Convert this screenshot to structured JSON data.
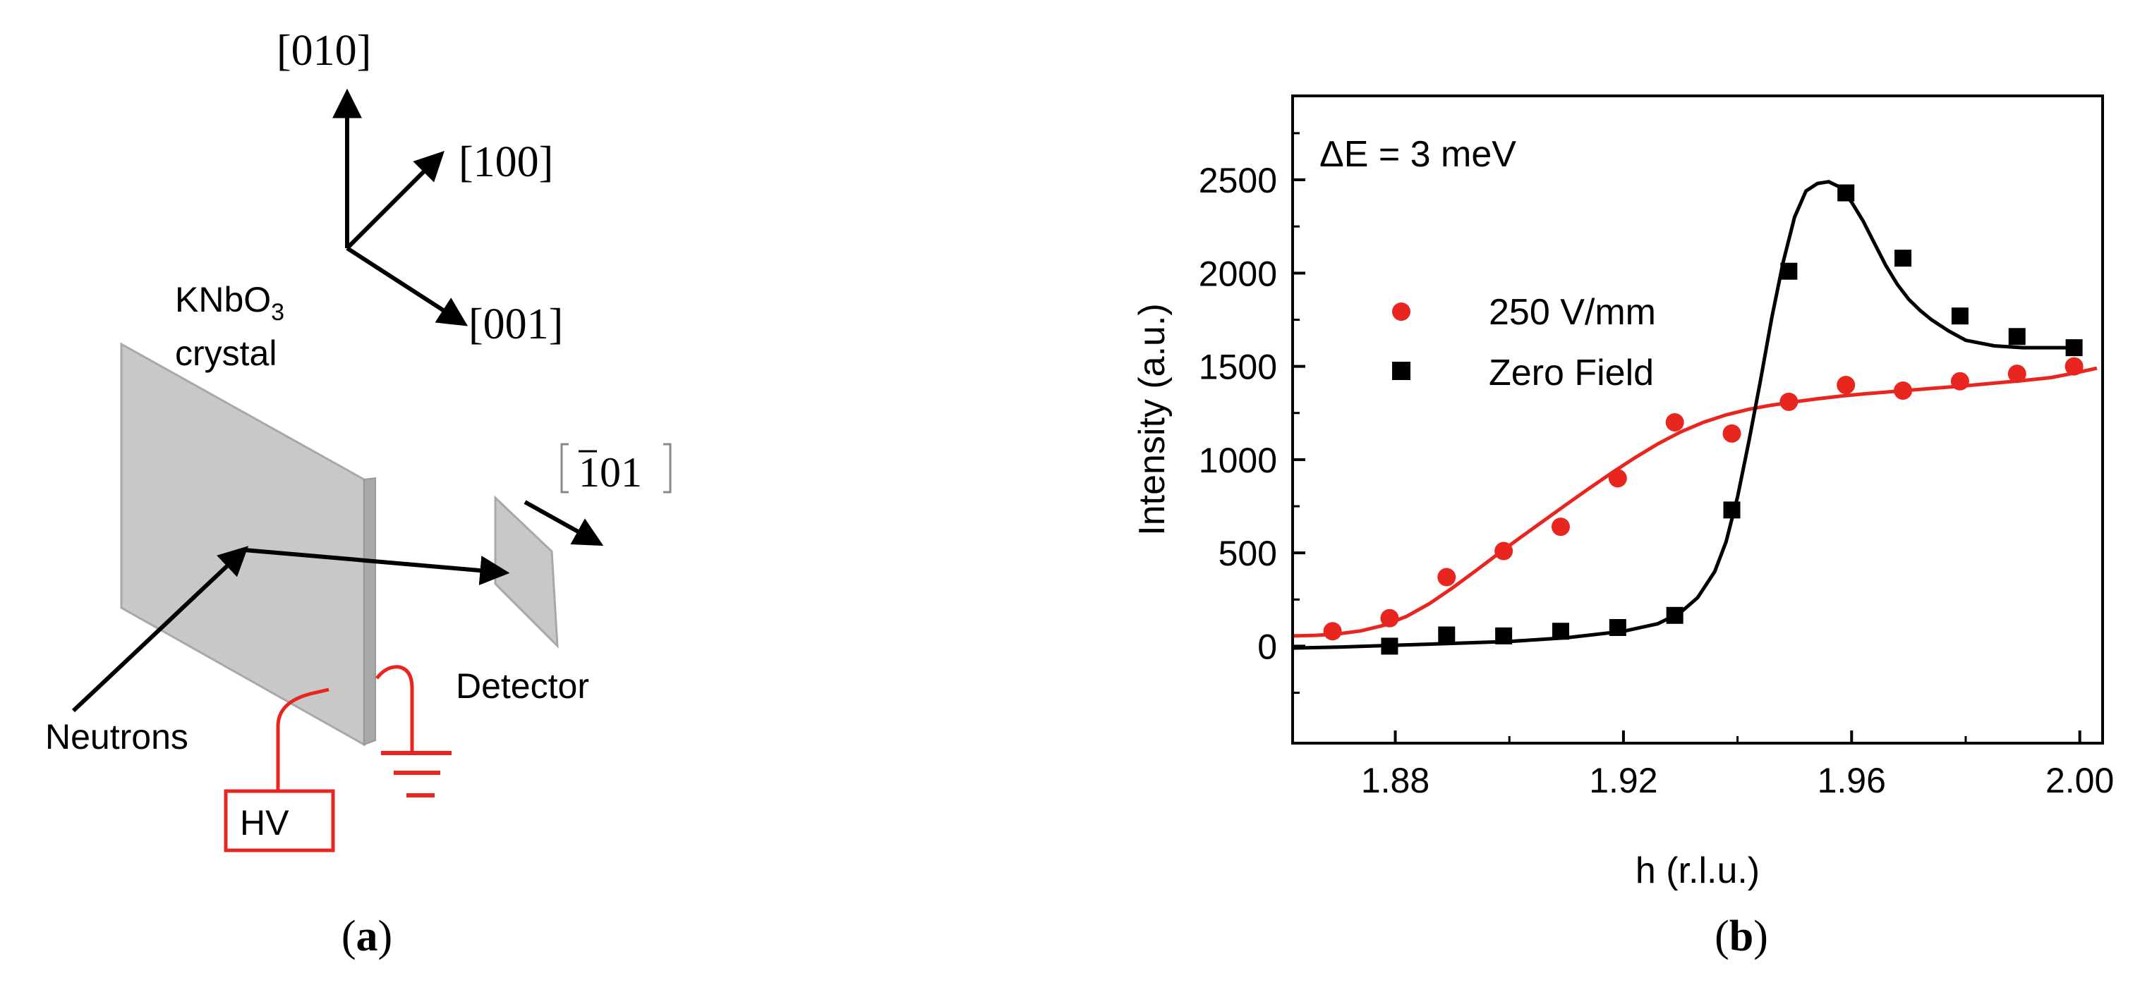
{
  "figure": {
    "panel_a_label_letter": "a",
    "panel_b_label_letter": "b"
  },
  "diagram": {
    "axis_010": "[010]",
    "axis_100": "[100]",
    "axis_001": "[001]",
    "axis_m101_bar": "1",
    "axis_m101_rest": "01",
    "crystal_formula": "KNbO",
    "crystal_subscript": "3",
    "crystal_word": "crystal",
    "detector_label": "Detector",
    "neutrons_label": "Neutrons",
    "hv_label": "HV",
    "colors": {
      "wire": "#e8251f",
      "plate": "#c8c8c8",
      "plate_edge": "#a8a8a8"
    }
  },
  "chart_data": {
    "type": "scatter",
    "annotation": "ΔE = 3 meV",
    "xlabel": "h (r.l.u.)",
    "ylabel": "Intensity (a.u.)",
    "xlim": [
      1.862,
      2.004
    ],
    "ylim": [
      -520,
      2950
    ],
    "xticks": [
      1.88,
      1.92,
      1.96,
      2.0
    ],
    "xtick_labels": [
      "1.88",
      "1.92",
      "1.96",
      "2.00"
    ],
    "yticks": [
      0,
      500,
      1000,
      1500,
      2000,
      2500
    ],
    "ytick_labels": [
      "0",
      "500",
      "1000",
      "1500",
      "2000",
      "2500"
    ],
    "legend_position": "upper-left",
    "series": [
      {
        "name": "250 V/mm",
        "marker": "circle",
        "color": "#e8251f",
        "x": [
          1.869,
          1.879,
          1.889,
          1.899,
          1.909,
          1.919,
          1.929,
          1.939,
          1.949,
          1.959,
          1.969,
          1.979,
          1.989,
          1.999
        ],
        "y": [
          80,
          150,
          370,
          510,
          640,
          900,
          1200,
          1140,
          1310,
          1400,
          1370,
          1420,
          1460,
          1500
        ],
        "fit_x": [
          1.862,
          1.866,
          1.87,
          1.874,
          1.878,
          1.882,
          1.886,
          1.89,
          1.894,
          1.898,
          1.902,
          1.906,
          1.91,
          1.914,
          1.918,
          1.922,
          1.926,
          1.93,
          1.934,
          1.938,
          1.942,
          1.946,
          1.95,
          1.954,
          1.958,
          1.962,
          1.966,
          1.97,
          1.975,
          1.98,
          1.985,
          1.99,
          1.995,
          2.0,
          2.003
        ],
        "fit_y": [
          55,
          58,
          66,
          82,
          112,
          160,
          228,
          312,
          402,
          494,
          584,
          672,
          760,
          846,
          930,
          1010,
          1084,
          1148,
          1200,
          1240,
          1270,
          1292,
          1310,
          1326,
          1340,
          1352,
          1362,
          1372,
          1384,
          1396,
          1410,
          1424,
          1440,
          1470,
          1490
        ]
      },
      {
        "name": "Zero Field",
        "marker": "square",
        "color": "#000000",
        "x": [
          1.879,
          1.889,
          1.899,
          1.909,
          1.919,
          1.929,
          1.939,
          1.949,
          1.959,
          1.969,
          1.979,
          1.989,
          1.999
        ],
        "y": [
          0,
          60,
          55,
          80,
          100,
          165,
          730,
          2010,
          2430,
          2080,
          1770,
          1660,
          1600
        ],
        "fit_x": [
          1.862,
          1.87,
          1.88,
          1.89,
          1.9,
          1.91,
          1.92,
          1.926,
          1.93,
          1.933,
          1.936,
          1.938,
          1.94,
          1.942,
          1.944,
          1.946,
          1.948,
          1.95,
          1.952,
          1.954,
          1.956,
          1.958,
          1.96,
          1.962,
          1.964,
          1.966,
          1.968,
          1.97,
          1.972,
          1.974,
          1.977,
          1.98,
          1.985,
          1.99,
          1.995,
          2.0
        ],
        "fit_y": [
          -10,
          -5,
          5,
          15,
          25,
          45,
          80,
          120,
          180,
          260,
          400,
          560,
          800,
          1100,
          1420,
          1760,
          2060,
          2300,
          2440,
          2480,
          2490,
          2460,
          2380,
          2280,
          2160,
          2040,
          1940,
          1860,
          1800,
          1750,
          1690,
          1640,
          1610,
          1600,
          1600,
          1600
        ]
      }
    ]
  }
}
